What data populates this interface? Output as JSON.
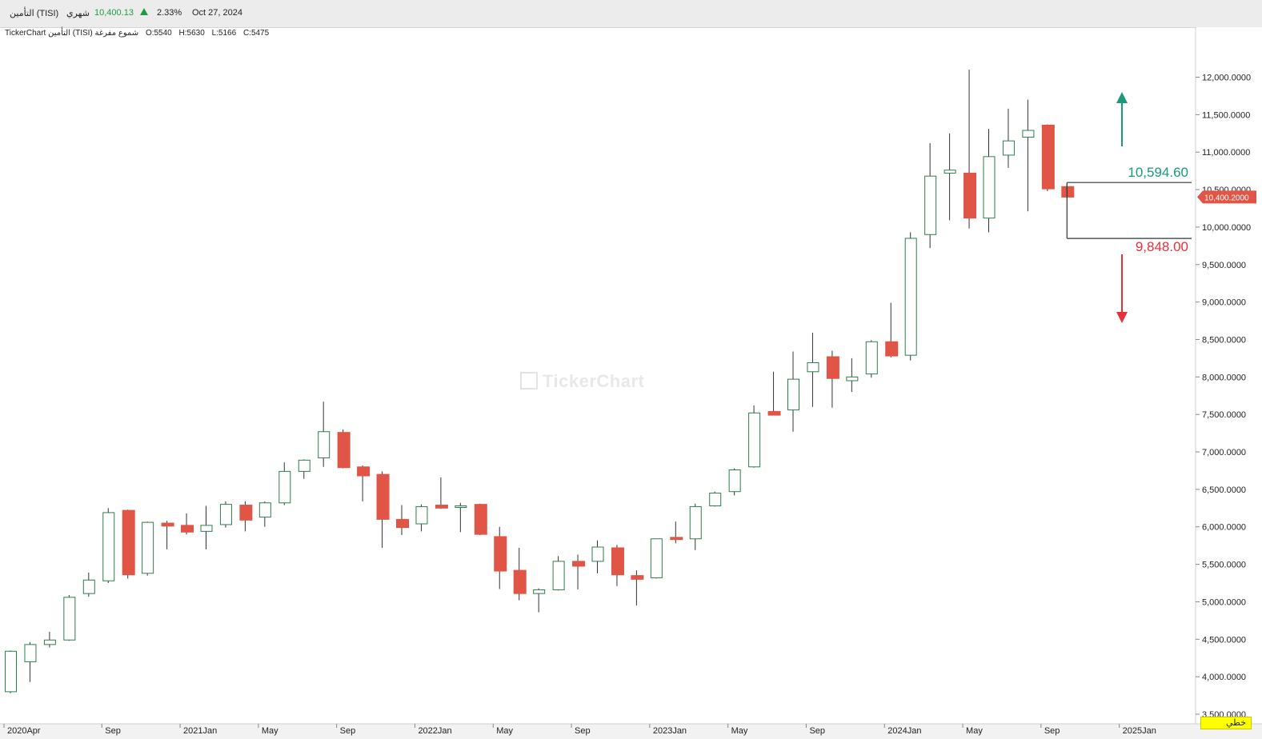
{
  "header": {
    "symbol": "التأمين (TISI)",
    "period": "شهري",
    "price": "10,400.13",
    "change_pct": "2.33%",
    "date": "Oct 27, 2024",
    "up_color": "#1a9e3e"
  },
  "ohlc_line": {
    "source": "TickerChart التأمين (TISI) شموع مفرغة",
    "open": "O:5540",
    "high": "H:5630",
    "low": "L:5166",
    "close": "C:5475"
  },
  "watermark": "TickerChart",
  "style_badge": "خطي",
  "current_price_label": "10,400.2000",
  "colors": {
    "up_stroke": "#2e7d4f",
    "down_fill": "#e05545",
    "upper_level": "#1a9a7a",
    "lower_level": "#e8303a",
    "price_tag": "#e05545"
  },
  "chart_data": {
    "type": "candlestick",
    "ylim": [
      3500,
      12000
    ],
    "y_ticks": [
      "12,000.0000",
      "11,500.0000",
      "11,000.0000",
      "10,500.0000",
      "10,000.0000",
      "9,500.0000",
      "9,000.0000",
      "8,500.0000",
      "8,000.0000",
      "7,500.0000",
      "7,000.0000",
      "6,500.0000",
      "6,000.0000",
      "5,500.0000",
      "5,000.0000",
      "4,500.0000",
      "4,000.0000",
      "3,500.0000"
    ],
    "x_labels": [
      {
        "label": "2020Apr",
        "index": 0
      },
      {
        "label": "Sep",
        "index": 5
      },
      {
        "label": "2021Jan",
        "index": 9
      },
      {
        "label": "May",
        "index": 13
      },
      {
        "label": "Sep",
        "index": 17
      },
      {
        "label": "2022Jan",
        "index": 21
      },
      {
        "label": "May",
        "index": 25
      },
      {
        "label": "Sep",
        "index": 29
      },
      {
        "label": "2023Jan",
        "index": 33
      },
      {
        "label": "May",
        "index": 37
      },
      {
        "label": "Sep",
        "index": 41
      },
      {
        "label": "2024Jan",
        "index": 45
      },
      {
        "label": "May",
        "index": 49
      },
      {
        "label": "Sep",
        "index": 53
      },
      {
        "label": "2025Jan",
        "index": 57
      }
    ],
    "candles": [
      {
        "o": 3800,
        "h": 4350,
        "l": 3780,
        "c": 4340
      },
      {
        "o": 4200,
        "h": 4460,
        "l": 3930,
        "c": 4430
      },
      {
        "o": 4430,
        "h": 4600,
        "l": 4390,
        "c": 4490
      },
      {
        "o": 4490,
        "h": 5090,
        "l": 4480,
        "c": 5060
      },
      {
        "o": 5110,
        "h": 5390,
        "l": 5070,
        "c": 5290
      },
      {
        "o": 5280,
        "h": 6250,
        "l": 5250,
        "c": 6190
      },
      {
        "o": 6220,
        "h": 6230,
        "l": 5310,
        "c": 5360
      },
      {
        "o": 5380,
        "h": 6070,
        "l": 5350,
        "c": 6060
      },
      {
        "o": 6050,
        "h": 6080,
        "l": 5700,
        "c": 6010
      },
      {
        "o": 6020,
        "h": 6180,
        "l": 5900,
        "c": 5930
      },
      {
        "o": 5940,
        "h": 6280,
        "l": 5700,
        "c": 6020
      },
      {
        "o": 6030,
        "h": 6340,
        "l": 5990,
        "c": 6300
      },
      {
        "o": 6290,
        "h": 6340,
        "l": 5940,
        "c": 6090
      },
      {
        "o": 6130,
        "h": 6340,
        "l": 6000,
        "c": 6320
      },
      {
        "o": 6320,
        "h": 6860,
        "l": 6290,
        "c": 6740
      },
      {
        "o": 6740,
        "h": 6900,
        "l": 6640,
        "c": 6890
      },
      {
        "o": 6920,
        "h": 7670,
        "l": 6800,
        "c": 7270
      },
      {
        "o": 7260,
        "h": 7300,
        "l": 6780,
        "c": 6790
      },
      {
        "o": 6800,
        "h": 6820,
        "l": 6340,
        "c": 6680
      },
      {
        "o": 6700,
        "h": 6740,
        "l": 5720,
        "c": 6100
      },
      {
        "o": 6100,
        "h": 6290,
        "l": 5890,
        "c": 5990
      },
      {
        "o": 6040,
        "h": 6300,
        "l": 5940,
        "c": 6270
      },
      {
        "o": 6290,
        "h": 6660,
        "l": 6240,
        "c": 6250
      },
      {
        "o": 6260,
        "h": 6320,
        "l": 5930,
        "c": 6280
      },
      {
        "o": 6300,
        "h": 6310,
        "l": 5890,
        "c": 5900
      },
      {
        "o": 5870,
        "h": 6000,
        "l": 5170,
        "c": 5410
      },
      {
        "o": 5420,
        "h": 5720,
        "l": 5020,
        "c": 5110
      },
      {
        "o": 5110,
        "h": 5180,
        "l": 4860,
        "c": 5160
      },
      {
        "o": 5160,
        "h": 5610,
        "l": 5150,
        "c": 5540
      },
      {
        "o": 5540,
        "h": 5630,
        "l": 5166,
        "c": 5475
      },
      {
        "o": 5540,
        "h": 5820,
        "l": 5380,
        "c": 5730
      },
      {
        "o": 5720,
        "h": 5760,
        "l": 5210,
        "c": 5360
      },
      {
        "o": 5350,
        "h": 5420,
        "l": 4950,
        "c": 5300
      },
      {
        "o": 5320,
        "h": 5840,
        "l": 5310,
        "c": 5840
      },
      {
        "o": 5860,
        "h": 6070,
        "l": 5780,
        "c": 5830
      },
      {
        "o": 5840,
        "h": 6310,
        "l": 5690,
        "c": 6270
      },
      {
        "o": 6280,
        "h": 6470,
        "l": 6270,
        "c": 6450
      },
      {
        "o": 6470,
        "h": 6780,
        "l": 6420,
        "c": 6760
      },
      {
        "o": 6800,
        "h": 7620,
        "l": 6790,
        "c": 7520
      },
      {
        "o": 7540,
        "h": 8070,
        "l": 7500,
        "c": 7490
      },
      {
        "o": 7560,
        "h": 8340,
        "l": 7270,
        "c": 7970
      },
      {
        "o": 8070,
        "h": 8590,
        "l": 7600,
        "c": 8190
      },
      {
        "o": 8270,
        "h": 8350,
        "l": 7590,
        "c": 7980
      },
      {
        "o": 7950,
        "h": 8250,
        "l": 7800,
        "c": 8000
      },
      {
        "o": 8040,
        "h": 8490,
        "l": 7990,
        "c": 8470
      },
      {
        "o": 8470,
        "h": 8990,
        "l": 8260,
        "c": 8280
      },
      {
        "o": 8290,
        "h": 9930,
        "l": 8220,
        "c": 9850
      },
      {
        "o": 9900,
        "h": 11120,
        "l": 9720,
        "c": 10680
      },
      {
        "o": 10720,
        "h": 11250,
        "l": 10090,
        "c": 10760
      },
      {
        "o": 10720,
        "h": 12100,
        "l": 9980,
        "c": 10120
      },
      {
        "o": 10120,
        "h": 11310,
        "l": 9930,
        "c": 10940
      },
      {
        "o": 10960,
        "h": 11580,
        "l": 10790,
        "c": 11150
      },
      {
        "o": 11200,
        "h": 11700,
        "l": 10210,
        "c": 11290
      },
      {
        "o": 11360,
        "h": 11370,
        "l": 10480,
        "c": 10510
      },
      {
        "o": 10540,
        "h": 10570,
        "l": 10390,
        "c": 10400
      }
    ],
    "levels": [
      {
        "label": "10,594.60",
        "value": 10594.6,
        "direction": "up"
      },
      {
        "label": "9,848.00",
        "value": 9848.0,
        "direction": "down"
      }
    ],
    "current_price": 10400.2
  }
}
